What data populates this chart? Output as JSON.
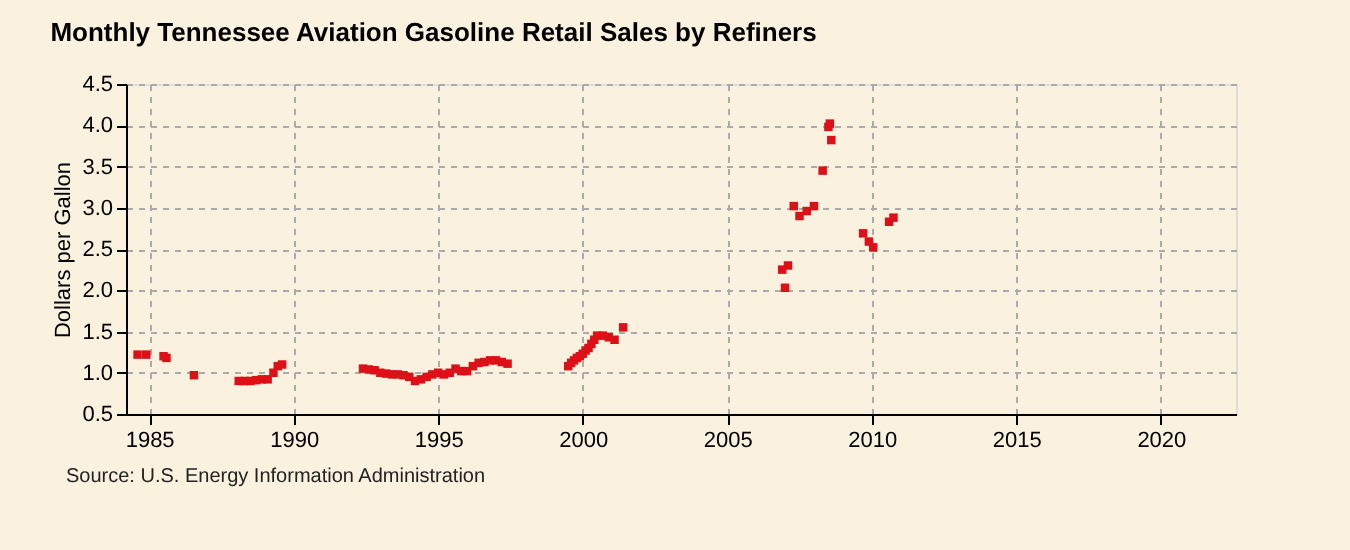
{
  "chart_data": {
    "type": "scatter",
    "title": "Monthly Tennessee Aviation Gasoline Retail Sales by Refiners",
    "ylabel": "Dollars per Gallon",
    "annotations": [
      "Source: U.S. Energy Information Administration"
    ],
    "series": [
      {
        "color": "#dd0f17",
        "x": [
          1984.6,
          1984.9,
          1985.5,
          1985.6,
          1986.55,
          1988.1,
          1988.3,
          1988.5,
          1988.7,
          1988.9,
          1989.1,
          1989.3,
          1989.45,
          1989.6,
          1992.4,
          1992.6,
          1992.8,
          1993.0,
          1993.2,
          1993.4,
          1993.6,
          1993.8,
          1994.0,
          1994.2,
          1994.4,
          1994.6,
          1994.8,
          1995.0,
          1995.2,
          1995.4,
          1995.6,
          1995.8,
          1996.0,
          1996.2,
          1996.4,
          1996.6,
          1996.8,
          1997.0,
          1997.2,
          1997.4,
          1999.5,
          1999.6,
          1999.7,
          1999.8,
          1999.9,
          2000.0,
          2000.1,
          2000.2,
          2000.3,
          2000.4,
          2000.5,
          2000.7,
          2000.9,
          2001.1,
          2001.4,
          2006.9,
          2007.0,
          2007.1,
          2007.3,
          2007.5,
          2007.75,
          2008.0,
          2008.3,
          2008.5,
          2008.55,
          2008.6,
          2009.7,
          2009.9,
          2010.05,
          2010.6,
          2010.75
        ],
        "values": [
          1.22,
          1.22,
          1.2,
          1.18,
          0.97,
          0.9,
          0.9,
          0.9,
          0.91,
          0.92,
          0.92,
          1.0,
          1.08,
          1.1,
          1.05,
          1.04,
          1.03,
          1.0,
          0.99,
          0.98,
          0.98,
          0.97,
          0.95,
          0.9,
          0.92,
          0.95,
          0.98,
          1.0,
          0.98,
          1.0,
          1.05,
          1.02,
          1.02,
          1.08,
          1.12,
          1.13,
          1.15,
          1.15,
          1.13,
          1.11,
          1.08,
          1.12,
          1.15,
          1.18,
          1.2,
          1.23,
          1.27,
          1.3,
          1.35,
          1.4,
          1.45,
          1.45,
          1.43,
          1.4,
          1.55,
          2.25,
          2.03,
          2.3,
          3.02,
          2.9,
          2.96,
          3.02,
          3.45,
          3.98,
          4.02,
          3.82,
          2.69,
          2.59,
          2.52,
          2.83,
          2.88
        ]
      }
    ],
    "xlim": [
      1984.2,
      2022.6
    ],
    "xticks": [
      1985,
      1990,
      1995,
      2000,
      2005,
      2010,
      2015,
      2020
    ],
    "ylim": [
      0.5,
      4.5
    ],
    "yticks": [
      {
        "value": 0.5,
        "label": "0.5"
      },
      {
        "value": 1,
        "label": "1.0"
      },
      {
        "value": 1.5,
        "label": "1.5"
      },
      {
        "value": 2,
        "label": "2.0"
      },
      {
        "value": 2.5,
        "label": "2.5"
      },
      {
        "value": 3,
        "label": "3.0"
      },
      {
        "value": 3.5,
        "label": "3.5"
      },
      {
        "value": 4,
        "label": "4.0"
      },
      {
        "value": 4.5,
        "label": "4.5"
      }
    ],
    "grid": true,
    "marker": "square"
  }
}
